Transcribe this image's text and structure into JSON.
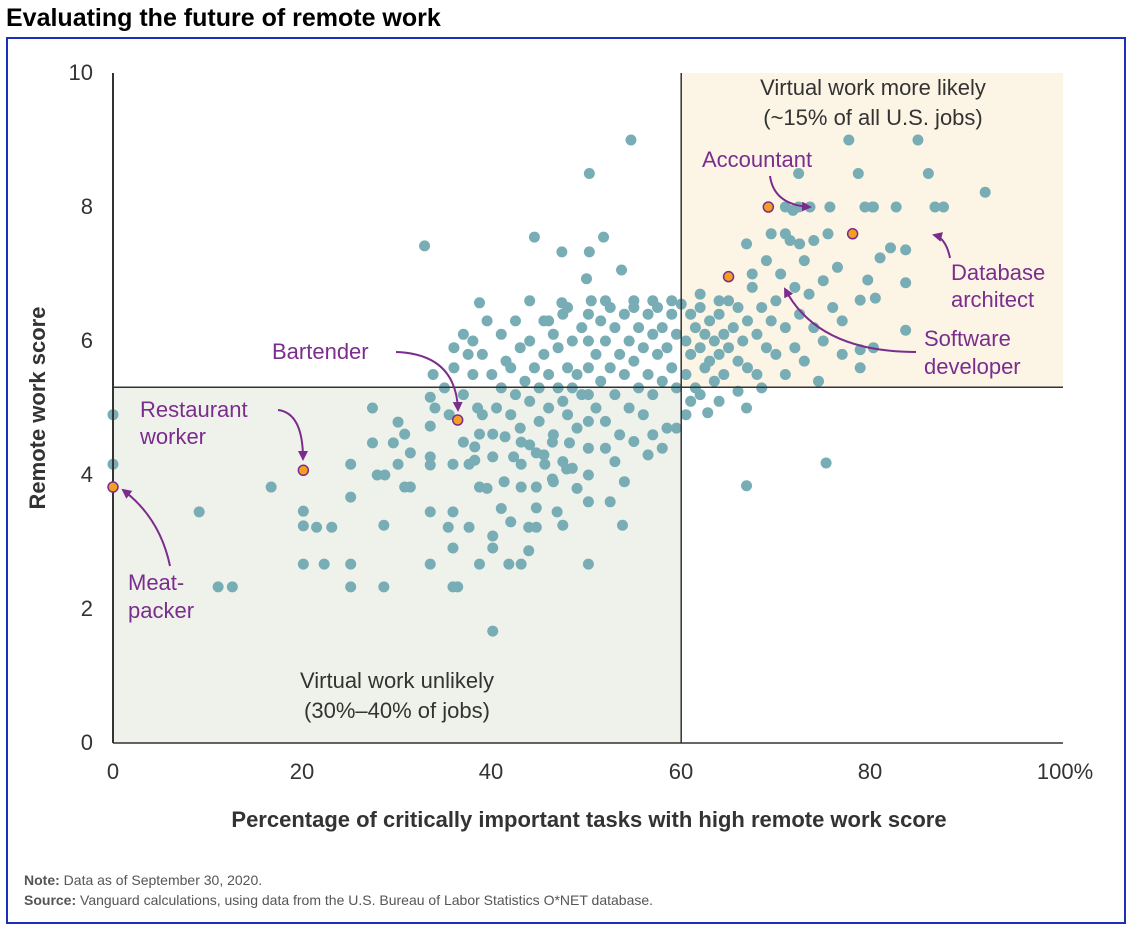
{
  "title": "Evaluating the future of remote work",
  "chart_data": {
    "type": "scatter",
    "title": "Evaluating the future of remote work",
    "xlabel": "Percentage of critically important tasks with high remote work score",
    "ylabel": "Remote work score",
    "xlim": [
      0,
      100
    ],
    "ylim": [
      0,
      10
    ],
    "x_ticks": [
      "0",
      "20",
      "40",
      "60",
      "80",
      "100%"
    ],
    "y_ticks": [
      "0",
      "2",
      "4",
      "6",
      "8",
      "10"
    ],
    "grid": false,
    "thresholds": {
      "x": 60,
      "y": 5.31
    },
    "colors": {
      "points": "#78adb5",
      "highlight": "#f2a01e",
      "annotation": "#7b2d8e",
      "unlikely_region": "#eff2ea",
      "likely_region": "#fcf5e5"
    },
    "regions": {
      "likely": {
        "line1": "Virtual work more likely",
        "line2": "(~15% of all U.S. jobs)"
      },
      "unlikely": {
        "line1": "Virtual work unlikely",
        "line2": "(30%–40% of jobs)"
      }
    },
    "highlighted": [
      {
        "label1": "Accountant",
        "label2": "",
        "x": 69.2,
        "y": 8.0
      },
      {
        "label1": "Database",
        "label2": "architect",
        "x": 78.1,
        "y": 7.6
      },
      {
        "label1": "Software",
        "label2": "developer",
        "x": 65.0,
        "y": 6.96
      },
      {
        "label1": "Bartender",
        "label2": "",
        "x": 36.4,
        "y": 4.82
      },
      {
        "label1": "Restaurant",
        "label2": "worker",
        "x": 20.1,
        "y": 4.07
      },
      {
        "label1": "Meat-",
        "label2": "packer",
        "x": 0,
        "y": 3.82
      }
    ],
    "points": [
      [
        0,
        4.9
      ],
      [
        0,
        4.16
      ],
      [
        9.1,
        3.45
      ],
      [
        11.1,
        2.33
      ],
      [
        12.6,
        2.33
      ],
      [
        16.7,
        3.82
      ],
      [
        20.1,
        3.46
      ],
      [
        20.1,
        3.24
      ],
      [
        21.5,
        3.22
      ],
      [
        23.1,
        3.22
      ],
      [
        20.1,
        2.67
      ],
      [
        22.3,
        2.67
      ],
      [
        25.1,
        2.67
      ],
      [
        25.1,
        2.33
      ],
      [
        25.1,
        3.67
      ],
      [
        25.1,
        4.16
      ],
      [
        28.6,
        3.25
      ],
      [
        28.6,
        2.33
      ],
      [
        27.9,
        4.0
      ],
      [
        28.7,
        4.0
      ],
      [
        27.4,
        5.0
      ],
      [
        27.4,
        4.48
      ],
      [
        29.6,
        4.48
      ],
      [
        30.1,
        4.79
      ],
      [
        30.8,
        4.61
      ],
      [
        31.4,
        4.33
      ],
      [
        30.1,
        4.16
      ],
      [
        30.8,
        3.82
      ],
      [
        31.4,
        3.82
      ],
      [
        33.5,
        5.16
      ],
      [
        33.5,
        4.73
      ],
      [
        33.5,
        4.27
      ],
      [
        33.5,
        4.15
      ],
      [
        35.9,
        4.16
      ],
      [
        33.5,
        3.45
      ],
      [
        35.9,
        3.45
      ],
      [
        35.4,
        3.22
      ],
      [
        37.6,
        3.22
      ],
      [
        35.9,
        2.91
      ],
      [
        33.5,
        2.67
      ],
      [
        35.9,
        2.33
      ],
      [
        36.4,
        2.33
      ],
      [
        40.1,
        1.67
      ],
      [
        38.7,
        2.67
      ],
      [
        41.8,
        2.67
      ],
      [
        43.1,
        2.67
      ],
      [
        40.1,
        3.09
      ],
      [
        40.1,
        2.91
      ],
      [
        43.9,
        2.87
      ],
      [
        44.7,
        3.51
      ],
      [
        43.9,
        3.22
      ],
      [
        44.7,
        3.22
      ],
      [
        46.9,
        3.45
      ],
      [
        47.5,
        3.25
      ],
      [
        38.7,
        3.82
      ],
      [
        41.3,
        3.9
      ],
      [
        43.1,
        3.82
      ],
      [
        44.7,
        3.82
      ],
      [
        46.4,
        3.94
      ],
      [
        47.9,
        4.09
      ],
      [
        37.6,
        4.16
      ],
      [
        38.2,
        4.22
      ],
      [
        40.1,
        4.27
      ],
      [
        42.3,
        4.27
      ],
      [
        43.1,
        4.16
      ],
      [
        45.6,
        4.16
      ],
      [
        37.0,
        4.49
      ],
      [
        38.2,
        4.42
      ],
      [
        38.7,
        4.61
      ],
      [
        40.1,
        4.61
      ],
      [
        41.4,
        4.57
      ],
      [
        43.1,
        4.49
      ],
      [
        44.7,
        4.33
      ],
      [
        46.4,
        4.49
      ],
      [
        48.2,
        4.48
      ],
      [
        54.7,
        9.0
      ],
      [
        50.3,
        8.5
      ],
      [
        32.9,
        7.42
      ],
      [
        44.5,
        7.55
      ],
      [
        47.4,
        7.33
      ],
      [
        50.3,
        7.33
      ],
      [
        51.8,
        7.55
      ],
      [
        53.7,
        7.06
      ],
      [
        50.0,
        6.93
      ],
      [
        38.7,
        6.57
      ],
      [
        47.4,
        6.57
      ],
      [
        71.0,
        8.0
      ],
      [
        71.8,
        7.95
      ],
      [
        72.4,
        8.0
      ],
      [
        73.6,
        8.0
      ],
      [
        75.7,
        8.0
      ],
      [
        79.4,
        8.0
      ],
      [
        80.2,
        8.0
      ],
      [
        72.4,
        8.5
      ],
      [
        78.7,
        8.5
      ],
      [
        77.7,
        9.0
      ],
      [
        92.1,
        8.22
      ],
      [
        86.1,
        8.5
      ],
      [
        85.0,
        9.0
      ],
      [
        87.7,
        8.0
      ],
      [
        86.8,
        8.0
      ],
      [
        82.7,
        8.0
      ],
      [
        80.3,
        8.0
      ],
      [
        83.7,
        7.36
      ],
      [
        82.1,
        7.39
      ],
      [
        81.0,
        7.24
      ],
      [
        79.7,
        6.91
      ],
      [
        78.9,
        6.61
      ],
      [
        80.5,
        6.64
      ],
      [
        83.7,
        6.16
      ],
      [
        83.7,
        6.87
      ],
      [
        78.9,
        5.6
      ],
      [
        78.9,
        5.87
      ],
      [
        80.3,
        5.9
      ],
      [
        75.3,
        4.18
      ],
      [
        66.9,
        3.84
      ],
      [
        66.9,
        5.0
      ],
      [
        62.8,
        4.93
      ],
      [
        40,
        5.5
      ],
      [
        40.5,
        5.0
      ],
      [
        41,
        5.3
      ],
      [
        41.5,
        5.7
      ],
      [
        42,
        4.9
      ],
      [
        42,
        5.6
      ],
      [
        42.5,
        5.2
      ],
      [
        43,
        5.9
      ],
      [
        43,
        4.7
      ],
      [
        43.5,
        5.4
      ],
      [
        44,
        5.1
      ],
      [
        44,
        6.0
      ],
      [
        44.5,
        5.6
      ],
      [
        45,
        4.8
      ],
      [
        45,
        5.3
      ],
      [
        45.5,
        6.3
      ],
      [
        45.5,
        5.8
      ],
      [
        46,
        5.0
      ],
      [
        46,
        5.5
      ],
      [
        46.5,
        6.1
      ],
      [
        46.5,
        4.6
      ],
      [
        47,
        5.3
      ],
      [
        47,
        5.9
      ],
      [
        47.5,
        5.1
      ],
      [
        47.5,
        6.4
      ],
      [
        48,
        5.6
      ],
      [
        48,
        4.9
      ],
      [
        48.5,
        5.3
      ],
      [
        48.5,
        6.0
      ],
      [
        49,
        5.5
      ],
      [
        49,
        4.7
      ],
      [
        49.5,
        6.2
      ],
      [
        49.5,
        5.2
      ],
      [
        50.2,
        3.6
      ],
      [
        50.2,
        4.0
      ],
      [
        50.2,
        4.4
      ],
      [
        50.2,
        4.8
      ],
      [
        50.2,
        5.2
      ],
      [
        50.2,
        5.6
      ],
      [
        50.2,
        6.0
      ],
      [
        50.2,
        6.4
      ],
      [
        50.2,
        2.67
      ],
      [
        51,
        5.8
      ],
      [
        51,
        5.0
      ],
      [
        51.5,
        6.3
      ],
      [
        51.5,
        5.4
      ],
      [
        52,
        6.0
      ],
      [
        52,
        4.8
      ],
      [
        52.5,
        5.6
      ],
      [
        52.5,
        6.5
      ],
      [
        53,
        5.2
      ],
      [
        53,
        6.2
      ],
      [
        53.5,
        5.8
      ],
      [
        53.5,
        4.6
      ],
      [
        54,
        5.5
      ],
      [
        54,
        6.4
      ],
      [
        54.5,
        5.0
      ],
      [
        54.5,
        6.0
      ],
      [
        55,
        5.7
      ],
      [
        55,
        6.5
      ],
      [
        55.5,
        5.3
      ],
      [
        55.5,
        6.2
      ],
      [
        56,
        5.9
      ],
      [
        56,
        4.9
      ],
      [
        56.5,
        6.4
      ],
      [
        56.5,
        5.5
      ],
      [
        57,
        6.1
      ],
      [
        57,
        5.2
      ],
      [
        57.5,
        5.8
      ],
      [
        57.5,
        6.5
      ],
      [
        58,
        5.4
      ],
      [
        58,
        6.2
      ],
      [
        58.5,
        5.9
      ],
      [
        58.5,
        4.7
      ],
      [
        59,
        6.4
      ],
      [
        59,
        5.6
      ],
      [
        59.5,
        6.1
      ],
      [
        59.5,
        5.3
      ],
      [
        60.5,
        6.0
      ],
      [
        60.5,
        5.5
      ],
      [
        61,
        6.4
      ],
      [
        61,
        5.8
      ],
      [
        61.5,
        6.2
      ],
      [
        61.5,
        5.3
      ],
      [
        62,
        6.5
      ],
      [
        62,
        5.9
      ],
      [
        62.5,
        6.1
      ],
      [
        62.5,
        5.6
      ],
      [
        63,
        6.3
      ],
      [
        63,
        5.7
      ],
      [
        63.5,
        6.0
      ],
      [
        63.5,
        5.4
      ],
      [
        64,
        6.4
      ],
      [
        64,
        5.8
      ],
      [
        64.5,
        6.1
      ],
      [
        64.5,
        5.5
      ],
      [
        65,
        6.6
      ],
      [
        65,
        5.9
      ],
      [
        65.5,
        6.2
      ],
      [
        66,
        6.5
      ],
      [
        66,
        5.7
      ],
      [
        66.5,
        6.0
      ],
      [
        67,
        6.3
      ],
      [
        67,
        5.6
      ],
      [
        67.5,
        6.8
      ],
      [
        68,
        6.1
      ],
      [
        68,
        5.5
      ],
      [
        68.5,
        6.5
      ],
      [
        69,
        5.9
      ],
      [
        69,
        7.2
      ],
      [
        69.5,
        6.3
      ],
      [
        70,
        6.6
      ],
      [
        70,
        5.8
      ],
      [
        70.5,
        7.0
      ],
      [
        71,
        6.2
      ],
      [
        71,
        5.5
      ],
      [
        71.5,
        7.5
      ],
      [
        72,
        6.8
      ],
      [
        72,
        5.9
      ],
      [
        72.5,
        6.4
      ],
      [
        73,
        7.2
      ],
      [
        73,
        5.7
      ],
      [
        73.5,
        6.7
      ],
      [
        74,
        6.2
      ],
      [
        74,
        7.5
      ],
      [
        74.5,
        5.4
      ],
      [
        75,
        6.9
      ],
      [
        75,
        6.0
      ],
      [
        75.5,
        7.6
      ],
      [
        76,
        6.5
      ],
      [
        76.5,
        7.1
      ],
      [
        77,
        6.3
      ],
      [
        77,
        5.8
      ],
      [
        66.9,
        7.45
      ],
      [
        67.5,
        7.0
      ],
      [
        69.5,
        7.6
      ],
      [
        71,
        7.6
      ],
      [
        72.5,
        7.45
      ],
      [
        68.5,
        5.3
      ],
      [
        62,
        5.2
      ],
      [
        64,
        5.1
      ],
      [
        66,
        5.25
      ],
      [
        34,
        5.0
      ],
      [
        35,
        5.3
      ],
      [
        36,
        5.6
      ],
      [
        37,
        5.2
      ],
      [
        38,
        5.5
      ],
      [
        38.5,
        5.0
      ],
      [
        39,
        5.8
      ],
      [
        39,
        4.9
      ],
      [
        37.5,
        5.8
      ],
      [
        35.5,
        4.9
      ],
      [
        33.8,
        5.5
      ],
      [
        36,
        5.9
      ],
      [
        37,
        6.1
      ],
      [
        38,
        6.0
      ],
      [
        39.5,
        6.3
      ],
      [
        41,
        6.1
      ],
      [
        42.5,
        6.3
      ],
      [
        44,
        6.6
      ],
      [
        46,
        6.3
      ],
      [
        48,
        6.5
      ],
      [
        50.5,
        6.6
      ],
      [
        52,
        6.6
      ],
      [
        55,
        6.6
      ],
      [
        57,
        6.6
      ],
      [
        59,
        6.6
      ],
      [
        60,
        6.55
      ],
      [
        62,
        6.7
      ],
      [
        64,
        6.6
      ],
      [
        52,
        4.4
      ],
      [
        53,
        4.2
      ],
      [
        54,
        3.9
      ],
      [
        55,
        4.5
      ],
      [
        56.5,
        4.3
      ],
      [
        57,
        4.6
      ],
      [
        58,
        4.4
      ],
      [
        47.5,
        4.2
      ],
      [
        48.5,
        4.1
      ],
      [
        45.5,
        4.3
      ],
      [
        44,
        4.45
      ],
      [
        46.5,
        3.9
      ],
      [
        53.8,
        3.25
      ],
      [
        52.5,
        3.6
      ],
      [
        49,
        3.8
      ],
      [
        42,
        3.3
      ],
      [
        41,
        3.5
      ],
      [
        39.5,
        3.8
      ],
      [
        60.5,
        4.9
      ],
      [
        61,
        5.1
      ],
      [
        59.5,
        4.7
      ]
    ]
  },
  "notes": {
    "note_label": "Note:",
    "note_text": " Data as of September 30, 2020.",
    "source_label": "Source:",
    "source_text": " Vanguard calculations, using data from the U.S. Bureau of Labor Statistics O*NET database."
  }
}
